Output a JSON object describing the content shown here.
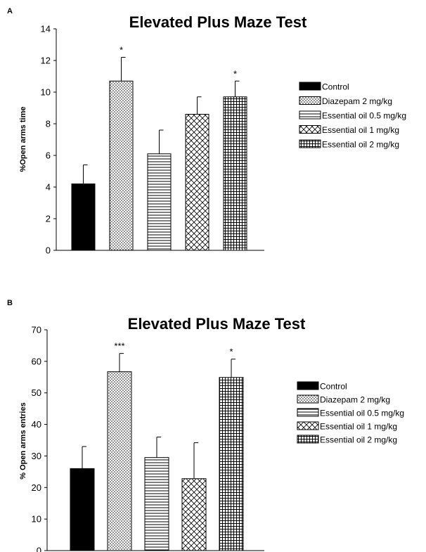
{
  "chart_data": [
    {
      "panel": "A",
      "type": "bar",
      "title": "Elevated Plus Maze Test",
      "xlabel": "",
      "ylabel": "%Open arms time",
      "ylim": [
        0,
        14
      ],
      "yticks": [
        "0",
        "2",
        "4",
        "6",
        "8",
        "10",
        "12",
        "14"
      ],
      "categories": [
        "Control",
        "Diazepam 2 mg/kg",
        "Essential oil 0.5 mg/kg",
        "Essential oil 1 mg/kg",
        "Essential oil 2 mg/kg"
      ],
      "values": [
        4.2,
        10.7,
        6.1,
        8.6,
        9.7
      ],
      "errors": [
        1.2,
        1.5,
        1.5,
        1.1,
        1.0
      ],
      "significance": [
        "",
        "*",
        "",
        "",
        "*"
      ],
      "patterns": [
        "solid",
        "dots",
        "hlines",
        "crosshatch",
        "grid"
      ],
      "grid": false,
      "legend_position": "right"
    },
    {
      "panel": "B",
      "type": "bar",
      "title": "Elevated Plus Maze Test",
      "xlabel": "",
      "ylabel": "% Open arms entries",
      "ylim": [
        0,
        70
      ],
      "yticks": [
        "0",
        "10",
        "20",
        "30",
        "40",
        "50",
        "60",
        "70"
      ],
      "categories": [
        "Control",
        "Diazepam 2 mg/kg",
        "Essential oil 0.5 mg/kg",
        "Essential oil 1 mg/kg",
        "Essential oil 2 mg/kg"
      ],
      "values": [
        26,
        56.7,
        29.5,
        22.8,
        54.9
      ],
      "errors": [
        7,
        5.8,
        6.5,
        11.4,
        5.8
      ],
      "significance": [
        "",
        "***",
        "",
        "",
        "*"
      ],
      "patterns": [
        "solid",
        "dots",
        "hlines",
        "crosshatch",
        "grid"
      ],
      "grid": false,
      "legend_position": "right"
    }
  ]
}
